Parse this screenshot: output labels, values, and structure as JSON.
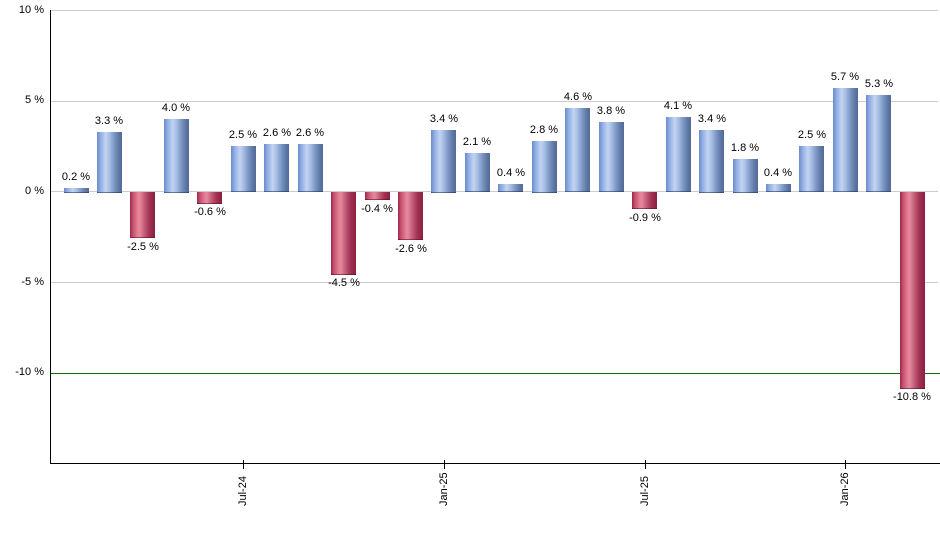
{
  "chart_data": {
    "type": "bar",
    "title": "",
    "xlabel": "",
    "ylabel": "",
    "values": [
      0.2,
      3.3,
      -2.5,
      4.0,
      -0.6,
      2.5,
      2.6,
      2.6,
      -4.5,
      -0.4,
      -2.6,
      3.4,
      2.1,
      0.4,
      2.8,
      4.6,
      3.8,
      -0.9,
      4.1,
      3.4,
      1.8,
      0.4,
      2.5,
      5.7,
      5.3,
      -10.8
    ],
    "bar_labels": [
      "0.2 %",
      "3.3 %",
      "-2.5 %",
      "4.0 %",
      "-0.6 %",
      "2.5 %",
      "2.6 %",
      "2.6 %",
      "-4.5 %",
      "-0.4 %",
      "-2.6 %",
      "3.4 %",
      "2.1 %",
      "0.4 %",
      "2.8 %",
      "4.6 %",
      "3.8 %",
      "-0.9 %",
      "4.1 %",
      "3.4 %",
      "1.8 %",
      "0.4 %",
      "2.5 %",
      "5.7 %",
      "5.3 %",
      "-10.8 %"
    ],
    "x_ticks": [
      {
        "index": 5,
        "label": "Jul-24"
      },
      {
        "index": 11,
        "label": "Jan-25"
      },
      {
        "index": 17,
        "label": "Jul-25"
      },
      {
        "index": 23,
        "label": "Jan-26"
      }
    ],
    "y_ticks": [
      {
        "value": 10,
        "label": "10 %"
      },
      {
        "value": 5,
        "label": "5 %"
      },
      {
        "value": 0,
        "label": "0 %"
      },
      {
        "value": -5,
        "label": "-5 %"
      },
      {
        "value": -10,
        "label": "-10 %"
      }
    ],
    "ylim": [
      -15,
      10
    ],
    "grid": true,
    "legend": false,
    "threshold_line": {
      "value": -10,
      "color": "#067006"
    },
    "colors": {
      "positive_bar": "#7b9bd6",
      "negative_bar": "#c54e6e",
      "gridline": "#cccccc",
      "axis": "#000000",
      "label_text": "#000000"
    }
  }
}
